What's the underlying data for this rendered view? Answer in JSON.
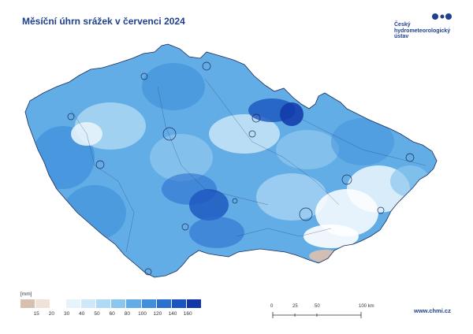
{
  "title": "Měsíční úhrn srážek v červenci 2024",
  "logo": {
    "lines": [
      "Český",
      "hydrometeorologický",
      "ústav"
    ],
    "icon": "chmi-logo-icon"
  },
  "legend": {
    "unit": "[mm]",
    "colors": [
      "#d8c0b0",
      "#f0e2d8",
      "#ffffff",
      "#e6f3fb",
      "#cfe8f8",
      "#b0d9f3",
      "#8cc6ee",
      "#62ade6",
      "#3f8fdb",
      "#2b70ce",
      "#1c55bf",
      "#1238a8"
    ],
    "labels": [
      "15",
      "20",
      "30",
      "40",
      "50",
      "60",
      "80",
      "100",
      "120",
      "140",
      "160"
    ]
  },
  "scale_bar": {
    "labels": [
      "0",
      "25",
      "50",
      "100 km"
    ]
  },
  "url": "www.chmi.cz"
}
